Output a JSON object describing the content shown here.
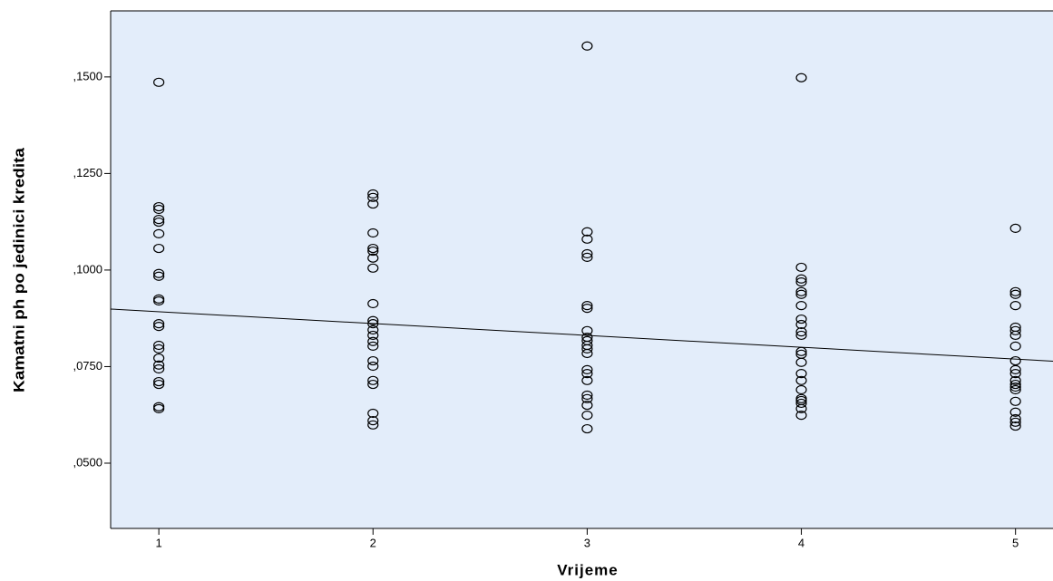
{
  "chart_data": {
    "type": "scatter",
    "x_label": "Vrijeme",
    "y_label": "Kamatni ph po jedinici kredita",
    "xlim": [
      0.775,
      5.175
    ],
    "ylim": [
      0.0331,
      0.1671
    ],
    "xticks": [
      1,
      2,
      3,
      4,
      5
    ],
    "yticks": [
      {
        "value": 0.05,
        "label": ",0500"
      },
      {
        "value": 0.075,
        "label": ",0750"
      },
      {
        "value": 0.1,
        "label": ",1000"
      },
      {
        "value": 0.125,
        "label": ",1250"
      },
      {
        "value": 0.15,
        "label": ",1500"
      }
    ],
    "background": "#e3edfa",
    "series": [
      {
        "color": "#000000",
        "x": [
          1,
          1,
          1,
          1,
          1,
          1,
          1,
          1,
          1,
          1,
          1,
          1,
          1,
          1,
          1,
          1,
          1,
          1,
          1,
          1,
          1,
          1,
          2,
          2,
          2,
          2,
          2,
          2,
          2,
          2,
          2,
          2,
          2,
          2,
          2,
          2,
          2,
          2,
          2,
          2,
          2,
          2,
          2,
          2,
          3,
          3,
          3,
          3,
          3,
          3,
          3,
          3,
          3,
          3,
          3,
          3,
          3,
          3,
          3,
          3,
          3,
          3,
          3,
          3,
          3,
          4,
          4,
          4,
          4,
          4,
          4,
          4,
          4,
          4,
          4,
          4,
          4,
          4,
          4,
          4,
          4,
          4,
          4,
          4,
          4,
          4,
          4,
          5,
          5,
          5,
          5,
          5,
          5,
          5,
          5,
          5,
          5,
          5,
          5,
          5,
          5,
          5,
          5,
          5,
          5,
          5,
          5
        ],
        "values": [
          0.1486,
          0.1164,
          0.1157,
          0.1131,
          0.1124,
          0.1094,
          0.1056,
          0.0991,
          0.0984,
          0.0925,
          0.092,
          0.0861,
          0.0854,
          0.0805,
          0.0796,
          0.0772,
          0.0754,
          0.0744,
          0.0711,
          0.0704,
          0.0646,
          0.0641,
          0.1197,
          0.1188,
          0.1171,
          0.1096,
          0.1056,
          0.1049,
          0.1031,
          0.1005,
          0.0913,
          0.0869,
          0.0861,
          0.0845,
          0.0831,
          0.0815,
          0.0803,
          0.0765,
          0.0751,
          0.0714,
          0.0704,
          0.0629,
          0.061,
          0.0599,
          0.158,
          0.1099,
          0.108,
          0.1042,
          0.1033,
          0.0908,
          0.0901,
          0.0843,
          0.0826,
          0.0817,
          0.0805,
          0.0796,
          0.0784,
          0.0742,
          0.0732,
          0.0714,
          0.0676,
          0.0667,
          0.065,
          0.0624,
          0.0589,
          0.1498,
          0.1007,
          0.0977,
          0.0969,
          0.0944,
          0.0937,
          0.0908,
          0.0873,
          0.0859,
          0.084,
          0.0831,
          0.0789,
          0.0782,
          0.0761,
          0.0732,
          0.0714,
          0.069,
          0.0667,
          0.0662,
          0.0655,
          0.0641,
          0.0624,
          0.1108,
          0.0944,
          0.0937,
          0.0908,
          0.0852,
          0.0843,
          0.0831,
          0.0803,
          0.0765,
          0.0742,
          0.0732,
          0.0714,
          0.0704,
          0.0697,
          0.069,
          0.066,
          0.0632,
          0.0615,
          0.0606,
          0.0596
        ]
      }
    ],
    "fit_line": {
      "color": "#000000",
      "x": [
        0.775,
        5.175
      ],
      "values": [
        0.0899,
        0.0764
      ]
    }
  }
}
